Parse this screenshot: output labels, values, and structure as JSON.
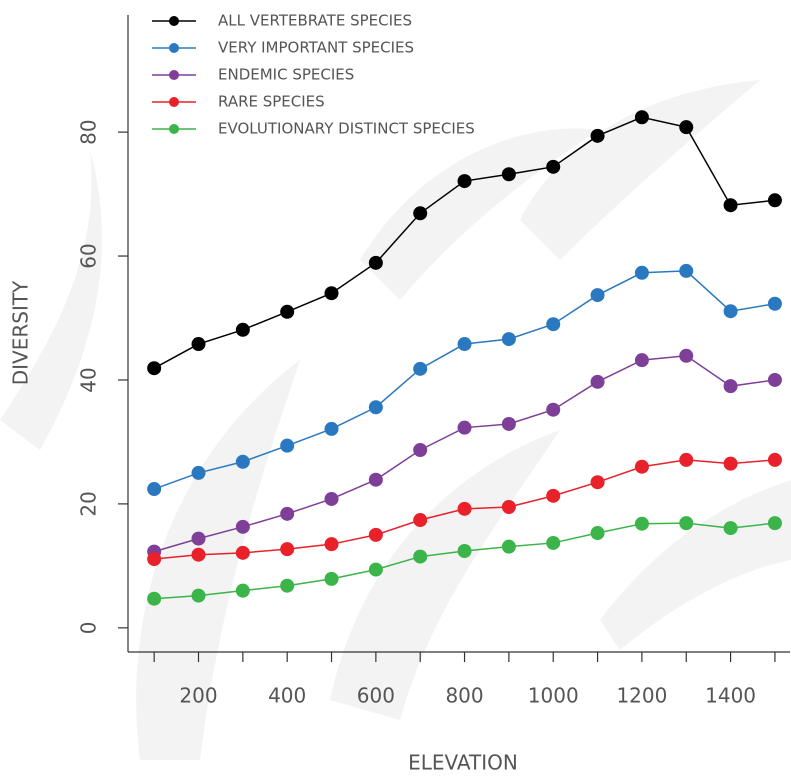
{
  "chart_data": {
    "type": "line",
    "xlabel": "ELEVATION",
    "ylabel": "DIVERSITY",
    "x": [
      100,
      200,
      300,
      400,
      500,
      600,
      700,
      800,
      900,
      1000,
      1100,
      1200,
      1300,
      1400,
      1500
    ],
    "series": [
      {
        "name": "ALL VERTEBRATE SPECIES",
        "color": "#000000",
        "values": [
          41.9,
          45.8,
          48.1,
          51,
          54,
          58.9,
          66.9,
          72.1,
          73.2,
          74.4,
          79.4,
          82.4,
          80.8,
          68.2,
          69
        ]
      },
      {
        "name": "VERY IMPORTANT SPECIES",
        "color": "#2a79c0",
        "values": [
          22.4,
          25,
          26.8,
          29.4,
          32.1,
          35.6,
          41.8,
          45.8,
          46.6,
          49,
          53.7,
          57.3,
          57.6,
          51.1,
          52.3
        ]
      },
      {
        "name": "ENDEMIC SPECIES",
        "color": "#7e3f98",
        "values": [
          12.3,
          14.4,
          16.3,
          18.4,
          20.8,
          23.9,
          28.7,
          32.3,
          32.9,
          35.2,
          39.7,
          43.2,
          43.9,
          39,
          40
        ]
      },
      {
        "name": "RARE SPECIES",
        "color": "#e8212a",
        "values": [
          11.1,
          11.8,
          12.1,
          12.7,
          13.5,
          15,
          17.4,
          19.2,
          19.5,
          21.3,
          23.5,
          26,
          27.1,
          26.5,
          27.1
        ]
      },
      {
        "name": "EVOLUTIONARY DISTINCT SPECIES",
        "color": "#3bb44a",
        "values": [
          4.7,
          5.2,
          6,
          6.8,
          7.9,
          9.4,
          11.5,
          12.4,
          13.1,
          13.7,
          15.3,
          16.8,
          16.9,
          16.1,
          16.9
        ]
      }
    ],
    "xlim": [
      41,
      1534
    ],
    "ylim": [
      -3.9,
      98.9
    ],
    "xticks": [
      200,
      400,
      600,
      800,
      1000,
      1200,
      1400
    ],
    "xminorticks": [
      100,
      300,
      500,
      700,
      900,
      1100,
      1300,
      1500
    ],
    "yticks": [
      0,
      20,
      40,
      60,
      80
    ],
    "legend": "top-left"
  }
}
